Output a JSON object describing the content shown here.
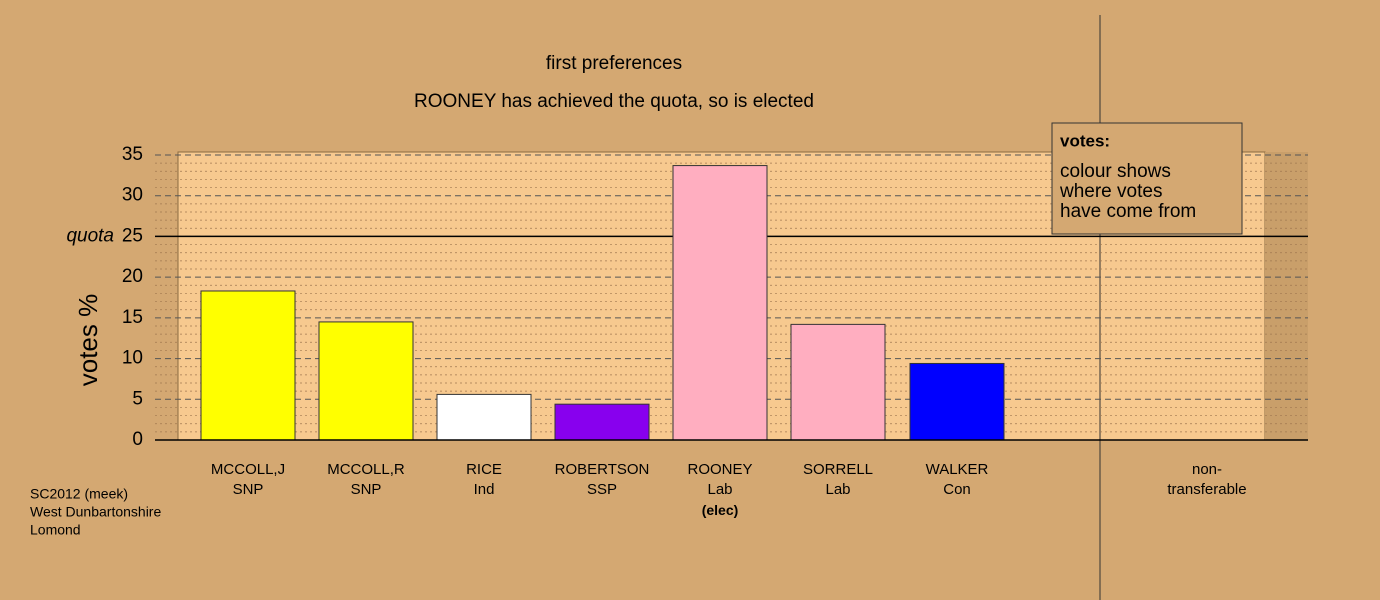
{
  "chart_data": {
    "type": "bar",
    "title": "first preferences",
    "subtitle": "ROONEY has achieved the quota, so is elected",
    "ylabel": "votes %",
    "categories": [
      "MCCOLL,J",
      "MCCOLL,R",
      "RICE",
      "ROBERTSON",
      "ROONEY",
      "SORRELL",
      "WALKER",
      "non-transferable"
    ],
    "parties": [
      "SNP",
      "SNP",
      "Ind",
      "SSP",
      "Lab",
      "Lab",
      "Con",
      null
    ],
    "status": [
      null,
      null,
      null,
      null,
      "(elec)",
      null,
      null,
      null
    ],
    "values": [
      18.3,
      14.5,
      5.6,
      4.4,
      33.7,
      14.2,
      9.4,
      0
    ],
    "colors": [
      "#ffff00",
      "#ffff00",
      "#ffffff",
      "#8800ee",
      "#ffaec0",
      "#ffaec0",
      "#0000ff",
      "#d4a872"
    ],
    "ylim": [
      0,
      35
    ],
    "yticks": [
      0,
      5,
      10,
      15,
      20,
      25,
      30,
      35
    ],
    "yminorticks": [
      1,
      2,
      3,
      4,
      6,
      7,
      8,
      9,
      11,
      12,
      13,
      14,
      16,
      17,
      18,
      19,
      21,
      22,
      23,
      24,
      26,
      27,
      28,
      29,
      31,
      32,
      33,
      34
    ],
    "quota": {
      "label": "quota",
      "value": 25
    },
    "grid": true,
    "legend": {
      "title": "votes:",
      "lines": [
        "colour shows",
        "where votes",
        "have come from"
      ]
    },
    "footer": [
      "SC2012 (meek)",
      "West Dunbartonshire",
      "Lomond"
    ]
  }
}
